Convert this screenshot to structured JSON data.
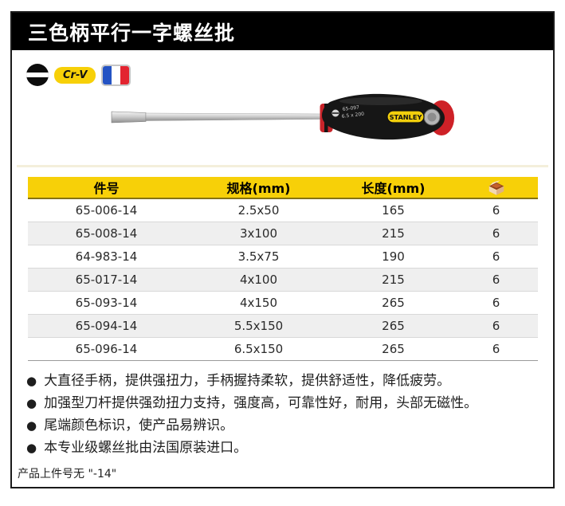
{
  "title": "三色柄平行一字螺丝批",
  "icons": {
    "slotted_drive": "slotted-drive-symbol",
    "crv_label": "Cr-V",
    "france_flag": "france-flag",
    "pack_box": "pack-quantity-box"
  },
  "product": {
    "brand_label": "STANLEY",
    "handle_text_line1": "65-097",
    "handle_text_line2": "6.5 x 200"
  },
  "table": {
    "headers": {
      "part_no": "件号",
      "spec": "规格(mm)",
      "length": "长度(mm)"
    },
    "rows": [
      {
        "part_no": "65-006-14",
        "spec": "2.5x50",
        "length": "165",
        "pack": "6"
      },
      {
        "part_no": "65-008-14",
        "spec": "3x100",
        "length": "215",
        "pack": "6"
      },
      {
        "part_no": "64-983-14",
        "spec": "3.5x75",
        "length": "190",
        "pack": "6"
      },
      {
        "part_no": "65-017-14",
        "spec": "4x100",
        "length": "215",
        "pack": "6"
      },
      {
        "part_no": "65-093-14",
        "spec": "4x150",
        "length": "265",
        "pack": "6"
      },
      {
        "part_no": "65-094-14",
        "spec": "5.5x150",
        "length": "265",
        "pack": "6"
      },
      {
        "part_no": "65-096-14",
        "spec": "6.5x150",
        "length": "265",
        "pack": "6"
      }
    ]
  },
  "features": [
    "大直径手柄，提供强扭力，手柄握持柔软，提供舒适性，降低疲劳。",
    "加强型刀杆提供强劲扭力支持，强度高，可靠性好，耐用，头部无磁性。",
    "尾端颜色标识，使产品易辨识。",
    "本专业级螺丝批由法国原装进口。"
  ],
  "footnote": "产品上件号无 \"-14\"",
  "colors": {
    "accent_yellow": "#F7D008",
    "row_alt": "#EFEFEF",
    "flag_blue": "#2453C4",
    "flag_red": "#E32430",
    "handle_red": "#CE2127"
  }
}
